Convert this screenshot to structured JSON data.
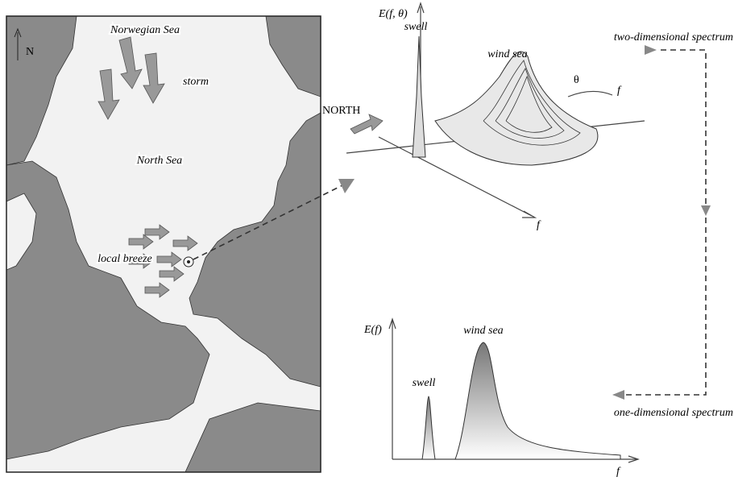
{
  "map": {
    "labels": {
      "north_mark": "N",
      "norwegian_sea": "Norwegian Sea",
      "storm": "storm",
      "north_sea": "North Sea",
      "local_breeze": "local breeze"
    }
  },
  "spectrum_2d": {
    "axis_label": "E(f, θ)",
    "swell": "swell",
    "wind_sea": "wind sea",
    "theta": "θ",
    "f_curved": "f",
    "north": "NORTH",
    "f_axis": "f",
    "caption": "two-dimensional spectrum"
  },
  "spectrum_1d": {
    "axis_label": "E(f)",
    "wind_sea": "wind sea",
    "swell": "swell",
    "f_axis": "f",
    "caption": "one-dimensional spectrum"
  }
}
